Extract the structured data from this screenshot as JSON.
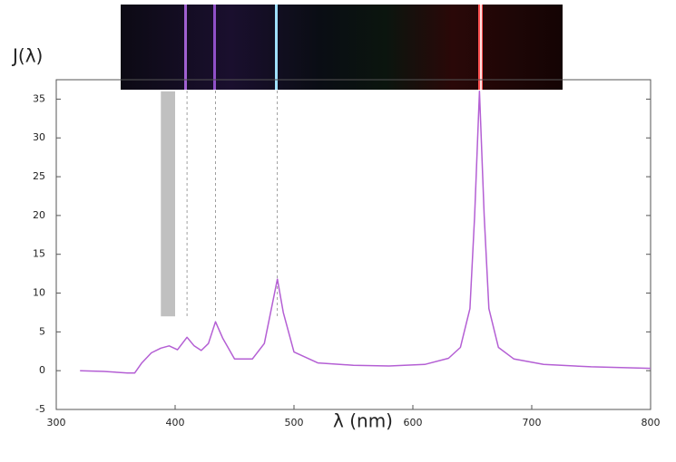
{
  "chart_data": {
    "type": "line",
    "x_label": "λ (nm)",
    "y_label": "J(λ)",
    "xlim": [
      300,
      800
    ],
    "ylim": [
      -5,
      37.5
    ],
    "xticks": [
      300,
      400,
      500,
      600,
      700,
      800
    ],
    "yticks": [
      -5,
      0,
      5,
      10,
      15,
      20,
      25,
      30,
      35
    ],
    "series": [
      {
        "color": "#b45fd4",
        "x": [
          320,
          340,
          360,
          366,
          372,
          380,
          388,
          395,
          402,
          410,
          416,
          422,
          428,
          434,
          440,
          450,
          465,
          475,
          481,
          486,
          491,
          500,
          520,
          550,
          580,
          610,
          630,
          640,
          648,
          652,
          656,
          660,
          664,
          672,
          685,
          710,
          750,
          800
        ],
        "values": [
          0,
          -0.1,
          -0.3,
          -0.3,
          1,
          2.3,
          2.9,
          3.2,
          2.7,
          4.3,
          3.2,
          2.6,
          3.5,
          6.3,
          4.2,
          1.5,
          1.5,
          3.5,
          8,
          11.8,
          7.5,
          2.4,
          1,
          0.7,
          0.6,
          0.8,
          1.6,
          3,
          8,
          20,
          36,
          20,
          8,
          3,
          1.5,
          0.8,
          0.5,
          0.3
        ]
      }
    ],
    "reference_lines": [
      410,
      434,
      486
    ],
    "shaded_region": {
      "x": [
        388,
        400
      ],
      "y": [
        7,
        36
      ]
    }
  }
}
